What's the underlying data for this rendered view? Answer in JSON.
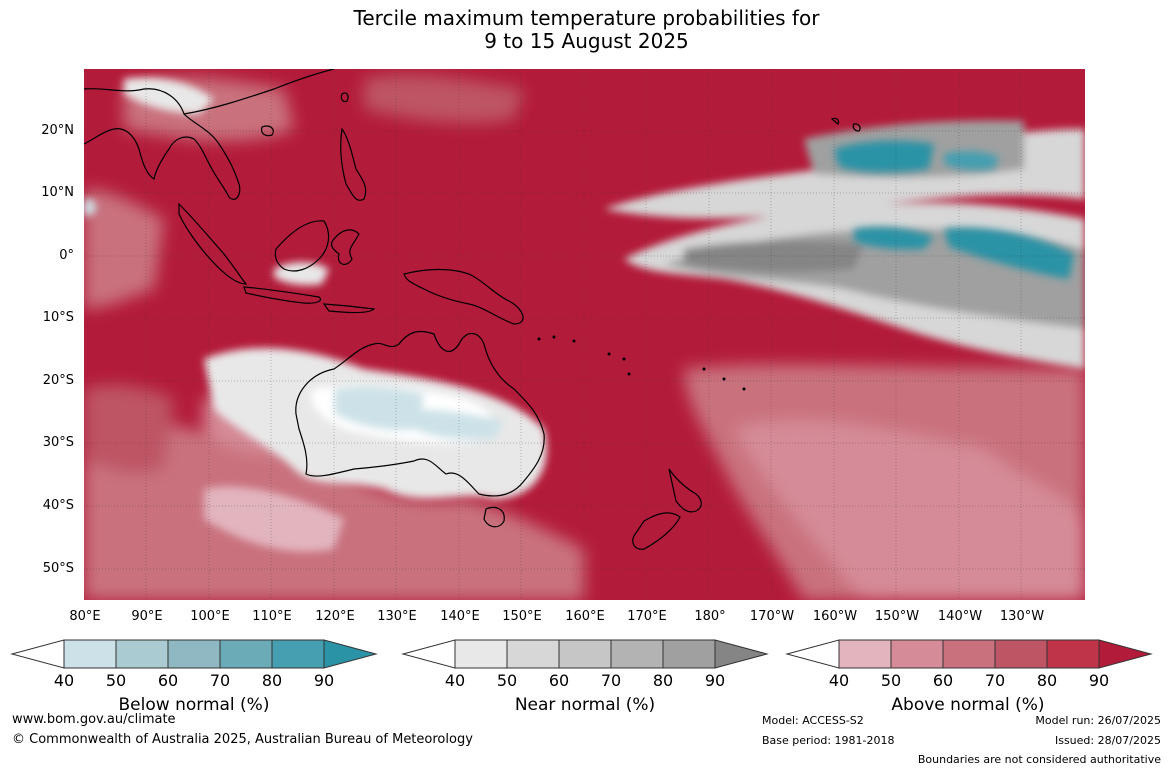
{
  "title": {
    "line1": "Tercile maximum temperature probabilities for",
    "line2": "9 to 15 August 2025"
  },
  "map": {
    "lat_labels": [
      "20°N",
      "10°N",
      "0°",
      "10°S",
      "20°S",
      "30°S",
      "40°S",
      "50°S"
    ],
    "lon_labels": [
      "80°E",
      "90°E",
      "100°E",
      "110°E",
      "120°E",
      "130°E",
      "140°E",
      "150°E",
      "160°E",
      "170°E",
      "180°",
      "170°W",
      "160°W",
      "150°W",
      "140°W",
      "130°W"
    ],
    "background_color": "#b31b3a"
  },
  "colorbars": [
    {
      "label": "Below normal (%)",
      "ticks": [
        "40",
        "50",
        "60",
        "70",
        "80",
        "90"
      ],
      "colors": [
        "#cde2e8",
        "#aacbd1",
        "#8fb8c3",
        "#6babb7",
        "#459fb0",
        "#2a93a6"
      ]
    },
    {
      "label": "Near normal (%)",
      "ticks": [
        "40",
        "50",
        "60",
        "70",
        "80",
        "90"
      ],
      "colors": [
        "#e8e8e8",
        "#d7d7d7",
        "#c6c6c6",
        "#b3b3b3",
        "#a0a0a0",
        "#858585"
      ]
    },
    {
      "label": "Above normal (%)",
      "ticks": [
        "40",
        "50",
        "60",
        "70",
        "80",
        "90"
      ],
      "colors": [
        "#e2b4bd",
        "#d58c98",
        "#c9727e",
        "#bd5565",
        "#bf3448",
        "#b31b3a"
      ]
    }
  ],
  "footer": {
    "website": "www.bom.gov.au/climate",
    "copyright": "© Commonwealth of Australia 2025, Australian Bureau of Meteorology",
    "model": "Model: ACCESS-S2",
    "base_period": "Base period: 1981-2018",
    "model_run": "Model run: 26/07/2025",
    "issued": "Issued: 28/07/2025",
    "disclaimer": "Boundaries are not considered authoritative"
  }
}
